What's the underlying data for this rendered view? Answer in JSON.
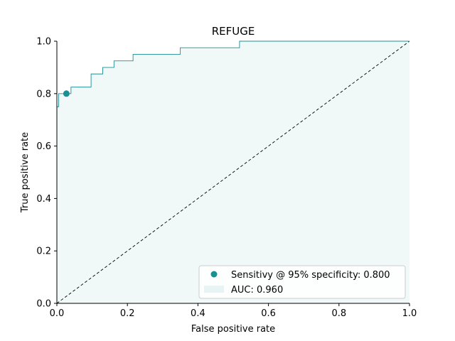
{
  "chart_data": {
    "type": "line",
    "title": "REFUGE",
    "xlabel": "False positive rate",
    "ylabel": "True positive rate",
    "xlim": [
      0,
      1
    ],
    "ylim": [
      0,
      1
    ],
    "xticks": [
      "0.0",
      "0.2",
      "0.4",
      "0.6",
      "0.8",
      "1.0"
    ],
    "yticks": [
      "0.0",
      "0.2",
      "0.4",
      "0.6",
      "0.8",
      "1.0"
    ],
    "grid": false,
    "legend_position": "lower-right",
    "colors": {
      "roc": "#1a8f94",
      "fill": "#e8f3f3",
      "diagonal": "#000000",
      "point": "#1a8f94"
    },
    "roc_curve": {
      "x": [
        0.0,
        0.0,
        0.005,
        0.005,
        0.03,
        0.03,
        0.04,
        0.04,
        0.097,
        0.097,
        0.13,
        0.13,
        0.162,
        0.162,
        0.216,
        0.216,
        0.35,
        0.35,
        0.518,
        0.518,
        1.0
      ],
      "y": [
        0.0,
        0.75,
        0.75,
        0.8,
        0.8,
        0.8,
        0.8,
        0.825,
        0.825,
        0.875,
        0.875,
        0.9,
        0.9,
        0.925,
        0.925,
        0.95,
        0.95,
        0.975,
        0.975,
        1.0,
        1.0
      ]
    },
    "diagonal": {
      "x": [
        0,
        1
      ],
      "y": [
        0,
        1
      ]
    },
    "operating_point": {
      "x": 0.027,
      "y": 0.8
    },
    "legend": [
      {
        "label": "Sensitivy @ 95% specificity: 0.800",
        "marker": "circle"
      },
      {
        "label": "AUC: 0.960",
        "marker": "patch"
      }
    ]
  }
}
